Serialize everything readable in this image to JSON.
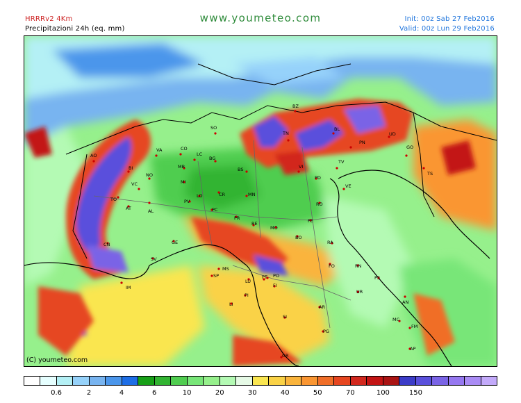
{
  "header": {
    "model": "HRRRv2 4Km",
    "product": "Precipitazioni 24h (eq. mm)",
    "site": "www.youmeteo.com",
    "init": "Init: 00z Sab 27 Feb2016",
    "valid": "Valid: 00z Lun 29 Feb2016"
  },
  "map": {
    "copyright": "(C) youmeteo.com",
    "city_labels": [
      "BZ",
      "SO",
      "TN",
      "BL",
      "UD",
      "PN",
      "GO",
      "TS",
      "AO",
      "VA",
      "CO",
      "LC",
      "BG",
      "BS",
      "VI",
      "TV",
      "PD",
      "VE",
      "BI",
      "NO",
      "VC",
      "MB",
      "MI",
      "TO",
      "AT",
      "AL",
      "PV",
      "LO",
      "CR",
      "PC",
      "MN",
      "RO",
      "FE",
      "PR",
      "RE",
      "MO",
      "CN",
      "GE",
      "SV",
      "BO",
      "RA",
      "FO",
      "RN",
      "PS",
      "MS",
      "SP",
      "LU",
      "PT",
      "FI",
      "PO",
      "PI",
      "AR",
      "UR",
      "AN",
      "IM",
      "LI",
      "SI",
      "PG",
      "MC",
      "FM",
      "AP",
      "GR"
    ]
  },
  "legend": {
    "colors": [
      "#ffffff",
      "#e6ffff",
      "#b4f0f5",
      "#96d2fa",
      "#78b4f0",
      "#4b96eb",
      "#1e6ee6",
      "#18a018",
      "#32b432",
      "#50cd50",
      "#78e678",
      "#96f08c",
      "#b4fab4",
      "#e6fae6",
      "#fae650",
      "#fad246",
      "#fab43c",
      "#fa9632",
      "#f06e28",
      "#e64620",
      "#d2281e",
      "#c31414",
      "#aa1414",
      "#3c3cc8",
      "#5a50dc",
      "#7a64e6",
      "#9678f0",
      "#aa8cf5",
      "#c3aafa"
    ],
    "ticks": [
      "0.6",
      "2",
      "4",
      "6",
      "10",
      "20",
      "30",
      "40",
      "50",
      "70",
      "100",
      "150"
    ]
  }
}
